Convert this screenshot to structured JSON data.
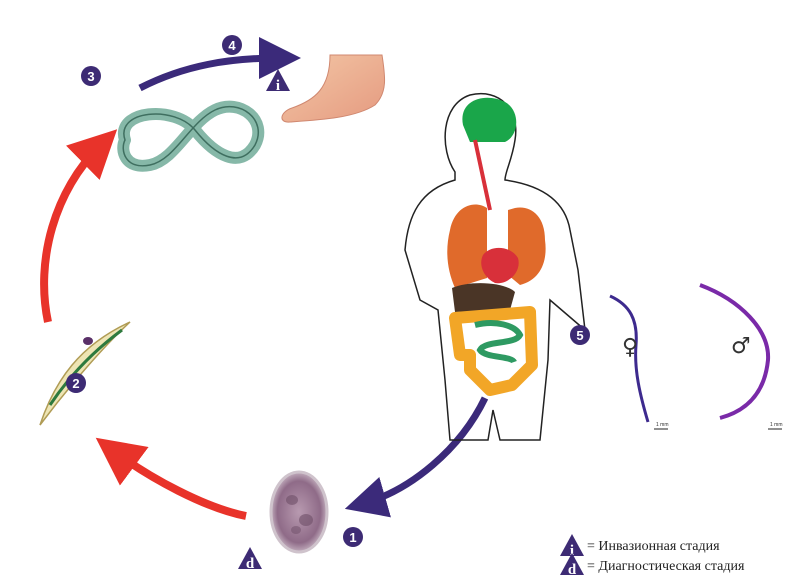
{
  "colors": {
    "arrow_red": "#e8332a",
    "arrow_purple": "#3b2a7a",
    "badge": "#3d2b74",
    "brain": "#1aa64a",
    "lungs": "#e06a2b",
    "heart": "#d8303a",
    "liver": "#4a3526",
    "colon": "#f2a627",
    "intestine": "#2e9a62",
    "worm_larva": "#86b8a8",
    "worm_adult": "#3d2a8e"
  },
  "stages": [
    {
      "number": "1",
      "label": "egg"
    },
    {
      "number": "2",
      "label": "rhabditiform-larva"
    },
    {
      "number": "3",
      "label": "filariform-larva"
    },
    {
      "number": "4",
      "label": "skin-penetration"
    },
    {
      "number": "5",
      "label": "adult-worms"
    }
  ],
  "markers": {
    "infective": "i",
    "diagnostic": "d"
  },
  "adults": {
    "female_symbol": "♀",
    "male_symbol": "♂",
    "scale_female": "1 mm",
    "scale_male": "1 mm"
  },
  "legend": {
    "infective_text": "= Инвазионная стадия",
    "diagnostic_text": "= Диагностическая стадия"
  }
}
